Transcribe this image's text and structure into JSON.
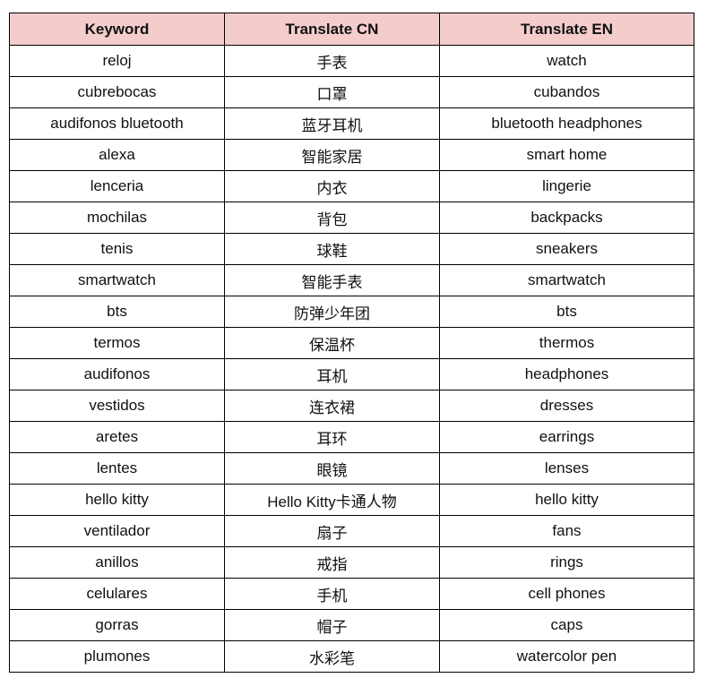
{
  "header_fill": "#f4cccc",
  "headers": [
    "Keyword",
    "Translate CN",
    "Translate EN"
  ],
  "rows": [
    [
      "reloj",
      "手表",
      "watch"
    ],
    [
      "cubrebocas",
      "口罩",
      "cubandos"
    ],
    [
      "audifonos bluetooth",
      "蓝牙耳机",
      "bluetooth headphones"
    ],
    [
      "alexa",
      "智能家居",
      "smart home"
    ],
    [
      "lenceria",
      "内衣",
      "lingerie"
    ],
    [
      "mochilas",
      "背包",
      "backpacks"
    ],
    [
      "tenis",
      "球鞋",
      "sneakers"
    ],
    [
      "smartwatch",
      "智能手表",
      "smartwatch"
    ],
    [
      "bts",
      "防弹少年团",
      "bts"
    ],
    [
      "termos",
      "保温杯",
      "thermos"
    ],
    [
      "audifonos",
      "耳机",
      "headphones"
    ],
    [
      "vestidos",
      "连衣裙",
      "dresses"
    ],
    [
      "aretes",
      "耳环",
      "earrings"
    ],
    [
      "lentes",
      "眼镜",
      "lenses"
    ],
    [
      "hello kitty",
      "Hello Kitty卡通人物",
      "hello kitty"
    ],
    [
      "ventilador",
      "扇子",
      "fans"
    ],
    [
      "anillos",
      "戒指",
      "rings"
    ],
    [
      "celulares",
      "手机",
      "cell phones"
    ],
    [
      "gorras",
      "帽子",
      "caps"
    ],
    [
      "plumones",
      "水彩笔",
      "watercolor pen"
    ]
  ]
}
